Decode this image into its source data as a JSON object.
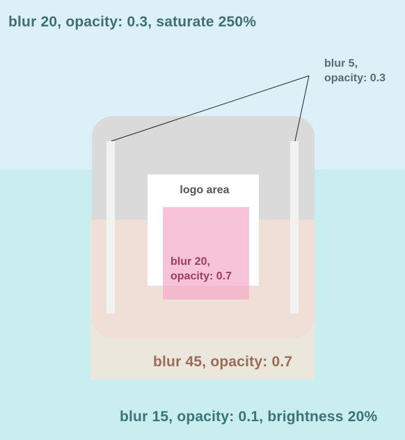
{
  "layers": {
    "background_label": "blur 20, opacity: 0.3, saturate 250%",
    "bottom_label": "blur 15, opacity: 0.1, brightness 20%",
    "glass_label": "blur 45, opacity: 0.7",
    "strips_label": [
      "blur 5,",
      "opacity: 0.3"
    ],
    "logo_area_label": "logo area",
    "pink_label": [
      "blur 20,",
      "opacity: 0.7"
    ]
  },
  "colors": {
    "sky": "#dcf0f8",
    "water": "#caedf0",
    "panel_gray": "#dadada",
    "panel_peach": "#efdfd7",
    "pink": "#f3aac8"
  }
}
